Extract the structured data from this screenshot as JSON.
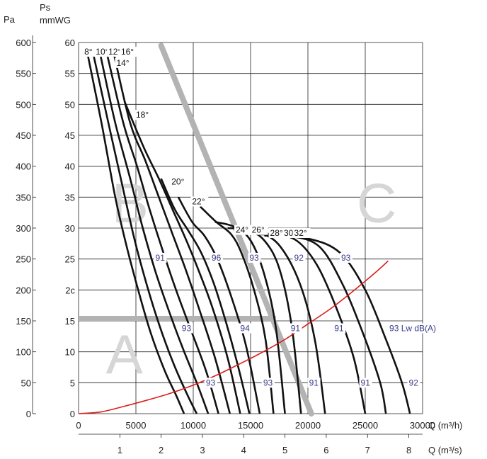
{
  "chart_data": {
    "type": "line",
    "title": "",
    "y_axis_left": {
      "unit": "Pa",
      "ticks": [
        "0",
        "50",
        "100",
        "150",
        "200",
        "250",
        "300",
        "350",
        "400",
        "450",
        "500",
        "550",
        "600"
      ]
    },
    "y_axis_main": {
      "unit_line1": "Ps",
      "unit_line2": "mmWG",
      "ticks": [
        "0",
        "5",
        "10",
        "15",
        "2с",
        "25",
        "30",
        "35",
        "40",
        "45",
        "50",
        "55",
        "60"
      ],
      "range": [
        0,
        60
      ]
    },
    "x_axis_main": {
      "label": "Q (m³/h)",
      "ticks": [
        "0",
        "5000",
        "10000",
        "15000",
        "20000",
        "25000",
        "30000"
      ],
      "range": [
        0,
        30000
      ]
    },
    "x_axis_secondary": {
      "label": "Q (m³/s)",
      "ticks": [
        "1",
        "2",
        "3",
        "4",
        "5",
        "6",
        "7",
        "8"
      ]
    },
    "zones": [
      {
        "name": "A",
        "x": 4000,
        "y": 6.5
      },
      {
        "name": "B",
        "x": 4500,
        "y": 31
      },
      {
        "name": "C",
        "x": 26000,
        "y": 31
      }
    ],
    "blade_angle_series": [
      {
        "name": "8°",
        "points": [
          [
            800,
            58
          ],
          [
            2000,
            47
          ],
          [
            3200,
            35
          ],
          [
            4200,
            27
          ],
          [
            5200,
            20
          ],
          [
            6300,
            13
          ],
          [
            7500,
            7
          ],
          [
            8500,
            3
          ],
          [
            9200,
            0
          ]
        ]
      },
      {
        "name": "10°",
        "points": [
          [
            1300,
            58
          ],
          [
            2600,
            47
          ],
          [
            3800,
            37
          ],
          [
            4900,
            28
          ],
          [
            6000,
            20.5
          ],
          [
            7100,
            14
          ],
          [
            8300,
            8
          ],
          [
            9500,
            3
          ],
          [
            10300,
            0
          ]
        ]
      },
      {
        "name": "12°",
        "points": [
          [
            1900,
            58
          ],
          [
            3200,
            47
          ],
          [
            4500,
            38
          ],
          [
            5600,
            30
          ],
          [
            6700,
            23
          ],
          [
            7800,
            17
          ],
          [
            9000,
            11
          ],
          [
            10300,
            5
          ],
          [
            11300,
            0
          ]
        ]
      },
      {
        "name": "14°",
        "points": [
          [
            2500,
            58
          ],
          [
            3900,
            47
          ],
          [
            5100,
            40
          ],
          [
            6200,
            33
          ],
          [
            7400,
            26
          ],
          [
            8500,
            20
          ],
          [
            9700,
            14
          ],
          [
            11100,
            7
          ],
          [
            12200,
            0
          ]
        ]
      },
      {
        "name": "16°",
        "points": [
          [
            3100,
            58
          ],
          [
            4500,
            47
          ],
          [
            5800,
            41
          ],
          [
            7000,
            35
          ],
          [
            8200,
            29
          ],
          [
            9300,
            23.5
          ],
          [
            10500,
            17
          ],
          [
            11900,
            9
          ],
          [
            13200,
            0
          ]
        ]
      },
      {
        "name": "18°",
        "points": [
          [
            4000,
            50.5
          ],
          [
            5700,
            43
          ],
          [
            7000,
            38
          ],
          [
            8200,
            33
          ],
          [
            9400,
            28
          ],
          [
            10500,
            23
          ],
          [
            11700,
            17
          ],
          [
            13000,
            9
          ],
          [
            14100,
            0
          ]
        ]
      },
      {
        "name": "20°",
        "points": [
          [
            7200,
            38
          ],
          [
            8400,
            33
          ],
          [
            9600,
            29.5
          ],
          [
            10700,
            26
          ],
          [
            11800,
            21
          ],
          [
            12900,
            14.5
          ],
          [
            14000,
            7
          ],
          [
            14900,
            0
          ]
        ]
      },
      {
        "name": "22°",
        "points": [
          [
            8700,
            35
          ],
          [
            9900,
            31
          ],
          [
            11000,
            28.7
          ],
          [
            12100,
            25
          ],
          [
            13300,
            19
          ],
          [
            14600,
            11
          ],
          [
            15800,
            0
          ]
        ]
      },
      {
        "name": "24°",
        "points": [
          [
            10600,
            33.5
          ],
          [
            12000,
            31
          ],
          [
            13300,
            29
          ],
          [
            14200,
            26
          ],
          [
            15300,
            20
          ],
          [
            16300,
            12
          ],
          [
            17000,
            0
          ]
        ]
      },
      {
        "name": "26°",
        "points": [
          [
            11900,
            31
          ],
          [
            13600,
            30.2
          ],
          [
            15000,
            28
          ],
          [
            16200,
            22.5
          ],
          [
            17200,
            14
          ],
          [
            18000,
            0
          ]
        ]
      },
      {
        "name": "28°",
        "points": [
          [
            13000,
            30
          ],
          [
            14700,
            29.7
          ],
          [
            16200,
            28
          ],
          [
            17500,
            23.5
          ],
          [
            18600,
            14
          ],
          [
            19400,
            0
          ]
        ]
      },
      {
        "name": "30°",
        "points": [
          [
            14000,
            29.5
          ],
          [
            15900,
            29.2
          ],
          [
            17600,
            27
          ],
          [
            19300,
            21
          ],
          [
            20600,
            12
          ],
          [
            21500,
            0
          ]
        ]
      },
      {
        "name": "32°",
        "points": [
          [
            14800,
            29.2
          ],
          [
            17000,
            29
          ],
          [
            19000,
            28
          ],
          [
            20800,
            24
          ],
          [
            22500,
            17
          ],
          [
            24000,
            9
          ],
          [
            25000,
            0
          ]
        ]
      },
      {
        "name": "",
        "points": [
          [
            15500,
            29
          ],
          [
            18500,
            28.7
          ],
          [
            21000,
            27
          ],
          [
            23000,
            21
          ],
          [
            24800,
            13
          ],
          [
            26300,
            5
          ],
          [
            26800,
            0
          ]
        ]
      },
      {
        "name": "",
        "points": [
          [
            16200,
            28.8
          ],
          [
            20000,
            28.3
          ],
          [
            22800,
            26
          ],
          [
            25000,
            20
          ],
          [
            26800,
            12
          ],
          [
            28200,
            5
          ],
          [
            28900,
            0
          ]
        ]
      }
    ],
    "system_curve": {
      "color": "#d8201d",
      "points": [
        [
          0,
          0
        ],
        [
          2000,
          0.3
        ],
        [
          4000,
          1.2
        ],
        [
          6000,
          2.2
        ],
        [
          8000,
          3.3
        ],
        [
          10000,
          4.6
        ],
        [
          12000,
          6.2
        ],
        [
          14000,
          8.0
        ],
        [
          16000,
          9.9
        ],
        [
          18000,
          12.0
        ],
        [
          20000,
          14.5
        ],
        [
          22000,
          17.0
        ],
        [
          24000,
          19.9
        ],
        [
          26000,
          23.0
        ],
        [
          27000,
          24.7
        ]
      ]
    },
    "zone_boundaries": {
      "color": "#b3b3b3",
      "diagonal": [
        [
          7200,
          59.5
        ],
        [
          20300,
          0
        ]
      ],
      "horizontal": [
        [
          0,
          15.4
        ],
        [
          17200,
          15.4
        ]
      ]
    },
    "angle_labels": [
      {
        "text": "8°",
        "x": 500,
        "y": 58.5
      },
      {
        "text": "10°",
        "x": 1500,
        "y": 58.5
      },
      {
        "text": "12°",
        "x": 2600,
        "y": 58.5
      },
      {
        "text": "16°",
        "x": 3700,
        "y": 58.5
      },
      {
        "text": "14°",
        "x": 3300,
        "y": 56.7
      },
      {
        "text": "18°",
        "x": 5000,
        "y": 48.3
      },
      {
        "text": "20°",
        "x": 8100,
        "y": 37.5
      },
      {
        "text": "22°",
        "x": 9900,
        "y": 34.3
      },
      {
        "text": "24°",
        "x": 13700,
        "y": 29.7
      },
      {
        "text": "26°",
        "x": 15100,
        "y": 29.7
      },
      {
        "text": "28°",
        "x": 16700,
        "y": 29.2
      },
      {
        "text": "30°",
        "x": 17900,
        "y": 29.2
      },
      {
        "text": "32°",
        "x": 18800,
        "y": 29.2
      }
    ],
    "noise_labels": [
      {
        "text": "91",
        "x": 6700,
        "y": 25.2
      },
      {
        "text": "96",
        "x": 11600,
        "y": 25.2
      },
      {
        "text": "93",
        "x": 14900,
        "y": 25.2
      },
      {
        "text": "92",
        "x": 18800,
        "y": 25.2
      },
      {
        "text": "93",
        "x": 22900,
        "y": 25.2
      },
      {
        "text": "93",
        "x": 9000,
        "y": 13.8
      },
      {
        "text": "94",
        "x": 14100,
        "y": 13.8
      },
      {
        "text": "91",
        "x": 18500,
        "y": 13.8
      },
      {
        "text": "91",
        "x": 22300,
        "y": 13.8
      },
      {
        "text": "93 Lw dB(A)",
        "x": 27100,
        "y": 13.8
      },
      {
        "text": "93",
        "x": 11100,
        "y": 5.0
      },
      {
        "text": "93",
        "x": 16100,
        "y": 5.0
      },
      {
        "text": "91",
        "x": 20100,
        "y": 5.0
      },
      {
        "text": "91",
        "x": 24600,
        "y": 5.0
      },
      {
        "text": "92",
        "x": 28800,
        "y": 5.0
      }
    ],
    "grid": true
  }
}
